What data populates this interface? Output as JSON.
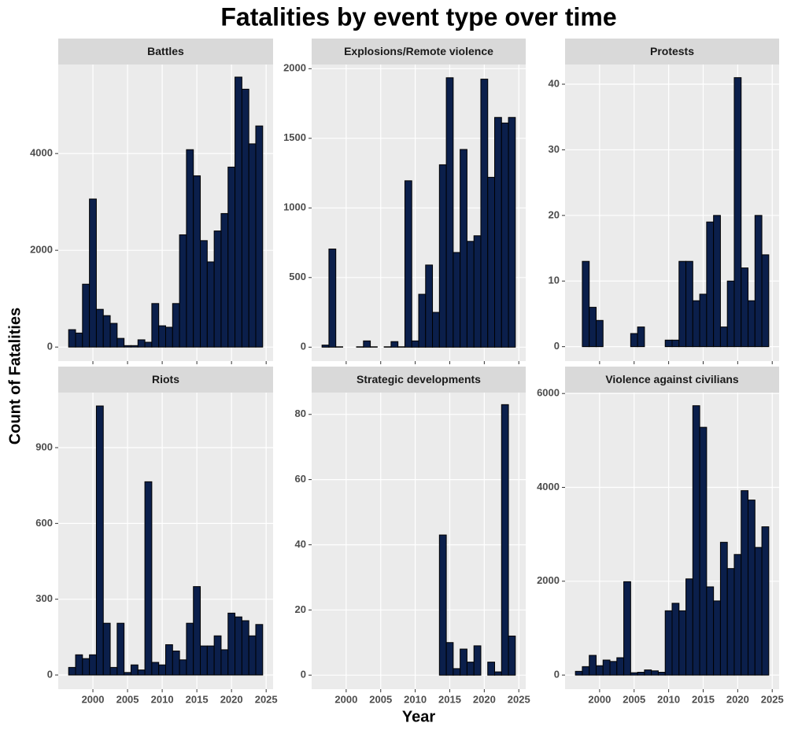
{
  "title": "Fatalities by event type over time",
  "x_label": "Year",
  "y_label": "Count of Fatalities",
  "chart_data": [
    {
      "type": "bar",
      "title": "Battles",
      "color": "#0b1f4b",
      "x": [
        1997,
        1998,
        1999,
        2000,
        2001,
        2002,
        2003,
        2004,
        2005,
        2006,
        2007,
        2008,
        2009,
        2010,
        2011,
        2012,
        2013,
        2014,
        2015,
        2016,
        2017,
        2018,
        2019,
        2020,
        2021,
        2022,
        2023,
        2024
      ],
      "values": [
        360,
        290,
        1300,
        3060,
        780,
        650,
        490,
        180,
        30,
        30,
        150,
        100,
        900,
        440,
        410,
        900,
        2320,
        4080,
        3540,
        2200,
        1760,
        2400,
        2760,
        3720,
        5580,
        5330,
        4200,
        4570
      ],
      "xlim": [
        1995,
        2026
      ],
      "xticks": [
        2000,
        2005,
        2010,
        2015,
        2020,
        2025
      ],
      "ylim": [
        -290,
        5840
      ],
      "yticks": [
        0,
        2000,
        4000
      ]
    },
    {
      "type": "bar",
      "title": "Explosions/Remote violence",
      "color": "#0b1f4b",
      "x": [
        1997,
        1998,
        1999,
        2000,
        2001,
        2002,
        2003,
        2004,
        2005,
        2006,
        2007,
        2008,
        2009,
        2010,
        2011,
        2012,
        2013,
        2014,
        2015,
        2016,
        2017,
        2018,
        2019,
        2020,
        2021,
        2022,
        2023,
        2024
      ],
      "values": [
        15,
        705,
        3,
        null,
        null,
        3,
        45,
        3,
        null,
        3,
        40,
        3,
        1195,
        45,
        380,
        590,
        250,
        1310,
        1935,
        680,
        1420,
        760,
        800,
        1925,
        1220,
        1650,
        1610,
        1650
      ],
      "xlim": [
        1995,
        2026
      ],
      "xticks": [
        2000,
        2005,
        2010,
        2015,
        2020,
        2025
      ],
      "ylim": [
        -100,
        2030
      ],
      "yticks": [
        0,
        500,
        1000,
        1500,
        2000
      ]
    },
    {
      "type": "bar",
      "title": "Protests",
      "color": "#0b1f4b",
      "x": [
        1997,
        1998,
        1999,
        2000,
        2001,
        2002,
        2003,
        2004,
        2005,
        2006,
        2007,
        2008,
        2009,
        2010,
        2011,
        2012,
        2013,
        2014,
        2015,
        2016,
        2017,
        2018,
        2019,
        2020,
        2021,
        2022,
        2023,
        2024
      ],
      "values": [
        0,
        13,
        6,
        4,
        0,
        null,
        0,
        0,
        2,
        3,
        0,
        0,
        0,
        1,
        1,
        13,
        13,
        7,
        8,
        19,
        20,
        3,
        10,
        41,
        12,
        7,
        20,
        14
      ],
      "xlim": [
        1995,
        2026
      ],
      "xticks": [
        2000,
        2005,
        2010,
        2015,
        2020,
        2025
      ],
      "ylim": [
        -2.2,
        43
      ],
      "yticks": [
        0,
        10,
        20,
        30,
        40
      ]
    },
    {
      "type": "bar",
      "title": "Riots",
      "color": "#0b1f4b",
      "x": [
        1997,
        1998,
        1999,
        2000,
        2001,
        2002,
        2003,
        2004,
        2005,
        2006,
        2007,
        2008,
        2009,
        2010,
        2011,
        2012,
        2013,
        2014,
        2015,
        2016,
        2017,
        2018,
        2019,
        2020,
        2021,
        2022,
        2023,
        2024
      ],
      "values": [
        30,
        80,
        65,
        80,
        1065,
        205,
        30,
        205,
        10,
        40,
        20,
        765,
        50,
        40,
        120,
        95,
        60,
        205,
        350,
        115,
        115,
        155,
        100,
        245,
        230,
        215,
        155,
        200
      ],
      "xlim": [
        1995,
        2026
      ],
      "xticks": [
        2000,
        2005,
        2010,
        2015,
        2020,
        2025
      ],
      "ylim": [
        -56,
        1118
      ],
      "yticks": [
        0,
        300,
        600,
        900
      ]
    },
    {
      "type": "bar",
      "title": "Strategic developments",
      "color": "#0b1f4b",
      "x": [
        1997,
        1998,
        1999,
        2000,
        2001,
        2002,
        2003,
        2004,
        2005,
        2006,
        2007,
        2008,
        2009,
        2010,
        2011,
        2012,
        2013,
        2014,
        2015,
        2016,
        2017,
        2018,
        2019,
        2020,
        2021,
        2022,
        2023,
        2024
      ],
      "values": [
        0,
        0,
        0,
        null,
        null,
        null,
        0,
        0,
        0,
        null,
        null,
        0,
        0,
        0,
        0,
        0,
        0,
        43,
        10,
        2,
        8,
        4,
        9,
        0,
        4,
        1,
        83,
        12
      ],
      "xlim": [
        1995,
        2026
      ],
      "xticks": [
        2000,
        2005,
        2010,
        2015,
        2020,
        2025
      ],
      "ylim": [
        -4.3,
        86.7
      ],
      "yticks": [
        0,
        20,
        40,
        60,
        80
      ]
    },
    {
      "type": "bar",
      "title": "Violence against civilians",
      "color": "#0b1f4b",
      "x": [
        1997,
        1998,
        1999,
        2000,
        2001,
        2002,
        2003,
        2004,
        2005,
        2006,
        2007,
        2008,
        2009,
        2010,
        2011,
        2012,
        2013,
        2014,
        2015,
        2016,
        2017,
        2018,
        2019,
        2020,
        2021,
        2022,
        2023,
        2024
      ],
      "values": [
        80,
        180,
        420,
        200,
        320,
        290,
        370,
        1990,
        50,
        60,
        110,
        90,
        60,
        1370,
        1530,
        1370,
        2050,
        5740,
        5280,
        1880,
        1580,
        2830,
        2270,
        2570,
        3930,
        3730,
        2720,
        3160
      ],
      "xlim": [
        1995,
        2026
      ],
      "xticks": [
        2000,
        2005,
        2010,
        2015,
        2020,
        2025
      ],
      "ylim": [
        -300,
        6020
      ],
      "yticks": [
        0,
        2000,
        4000,
        6000
      ]
    }
  ]
}
